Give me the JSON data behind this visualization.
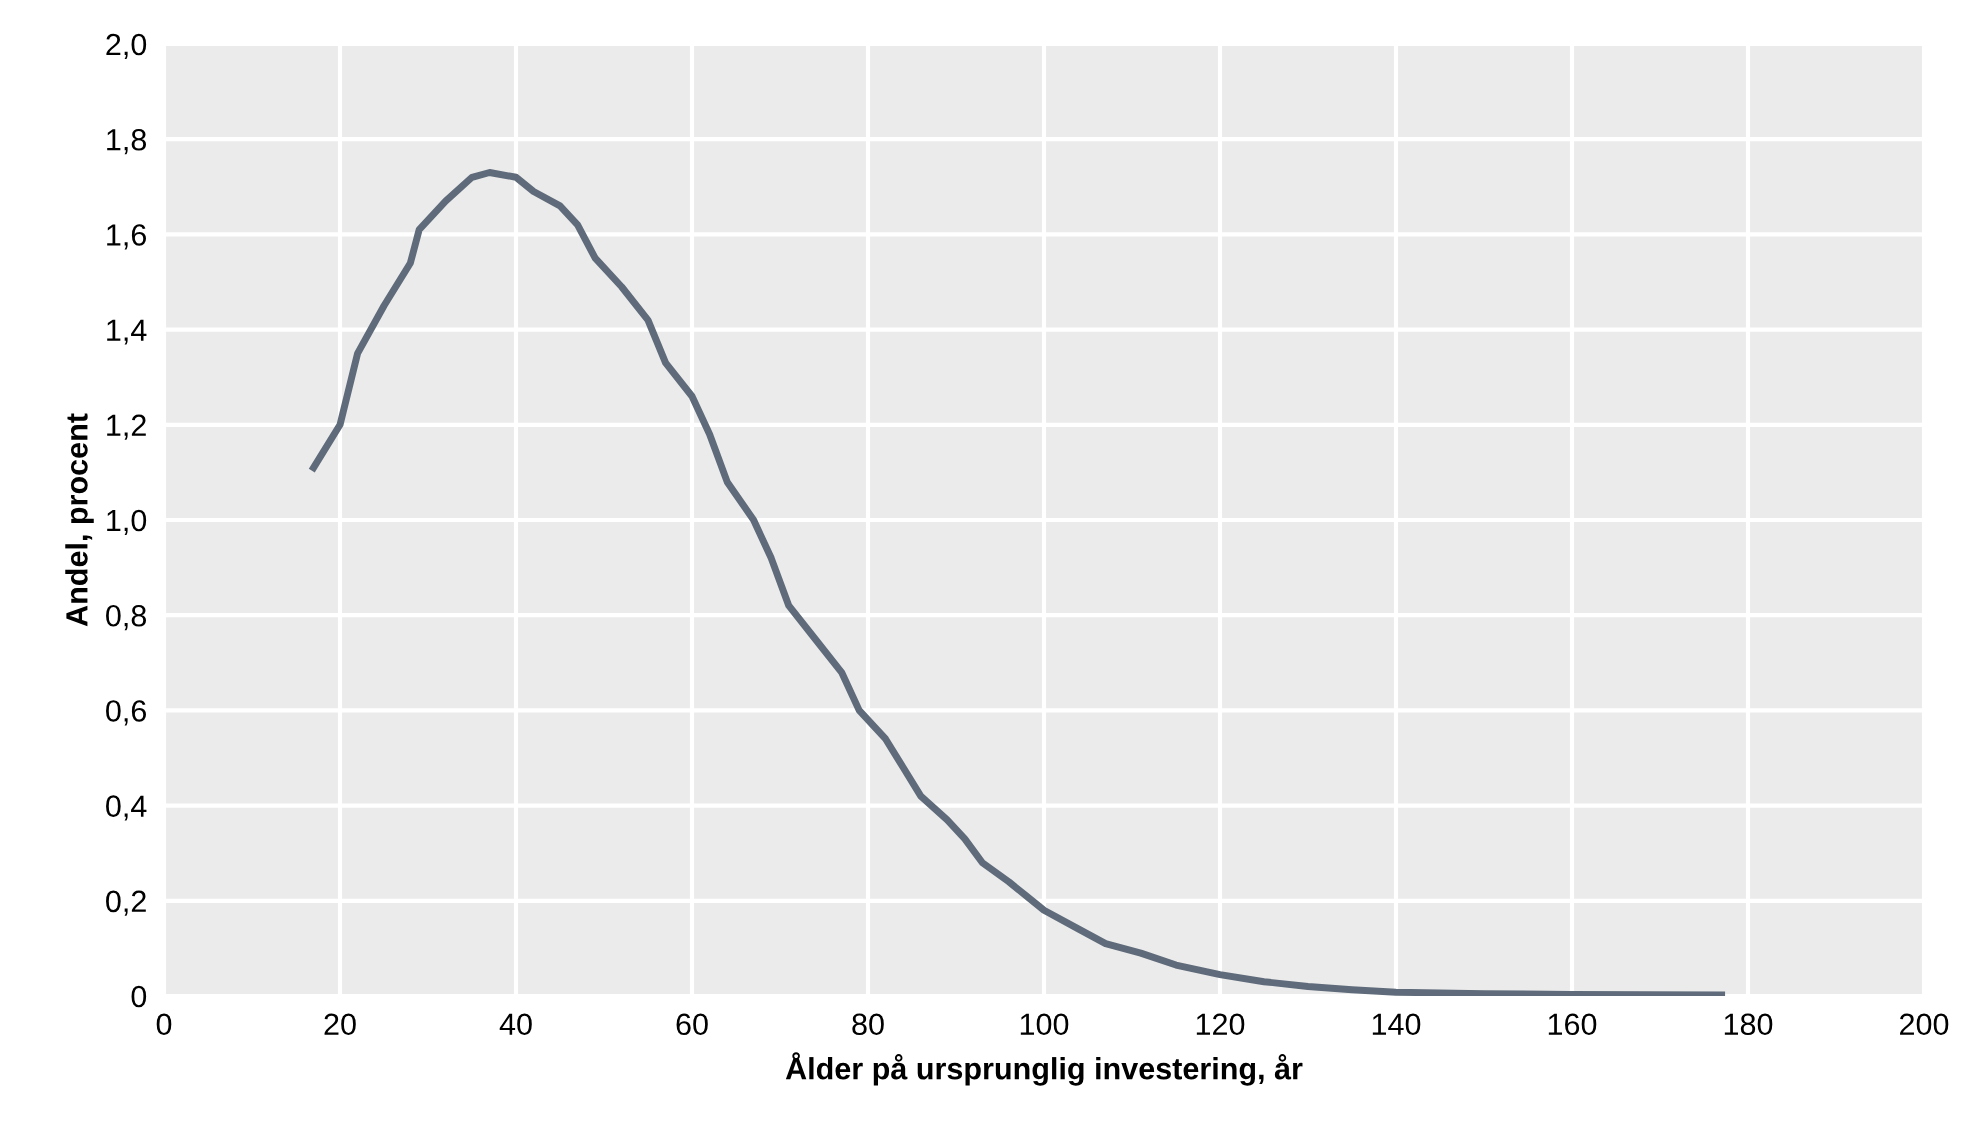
{
  "chart_data": {
    "type": "line",
    "xlabel": "Ålder på ursprunglig investering, år",
    "ylabel": "Andel, procent",
    "series": [
      {
        "color": "#5f6b7a",
        "x": [
          17,
          20,
          22,
          25,
          28,
          29,
          32,
          35,
          37,
          40,
          42,
          45,
          47,
          49,
          52,
          55,
          57,
          60,
          62,
          64,
          67,
          69,
          71,
          74,
          77,
          79,
          82,
          84,
          86,
          89,
          91,
          93,
          96,
          98,
          100,
          104,
          107,
          111,
          115,
          120,
          125,
          130,
          135,
          140,
          150,
          160,
          177
        ],
        "values": [
          1.11,
          1.2,
          1.35,
          1.45,
          1.54,
          1.61,
          1.67,
          1.72,
          1.73,
          1.72,
          1.69,
          1.66,
          1.62,
          1.55,
          1.49,
          1.42,
          1.33,
          1.26,
          1.18,
          1.08,
          1.0,
          0.92,
          0.82,
          0.75,
          0.68,
          0.6,
          0.54,
          0.48,
          0.42,
          0.37,
          0.33,
          0.28,
          0.24,
          0.21,
          0.18,
          0.14,
          0.11,
          0.09,
          0.065,
          0.045,
          0.03,
          0.02,
          0.013,
          0.008,
          0.005,
          0.003,
          0.002
        ]
      }
    ],
    "xlim": [
      0,
      200
    ],
    "xticks": [
      0,
      20,
      40,
      60,
      80,
      100,
      120,
      140,
      160,
      180,
      200
    ],
    "ylim": [
      0,
      2.0
    ],
    "yticks": [
      {
        "value": 0,
        "label": "0"
      },
      {
        "value": 0.2,
        "label": "0,2"
      },
      {
        "value": 0.4,
        "label": "0,4"
      },
      {
        "value": 0.6,
        "label": "0,6"
      },
      {
        "value": 0.8,
        "label": "0,8"
      },
      {
        "value": 1.0,
        "label": "1,0"
      },
      {
        "value": 1.2,
        "label": "1,2"
      },
      {
        "value": 1.4,
        "label": "1,4"
      },
      {
        "value": 1.6,
        "label": "1,6"
      },
      {
        "value": 1.8,
        "label": "1,8"
      },
      {
        "value": 2.0,
        "label": "2,0"
      }
    ],
    "grid": true,
    "marker": "none",
    "line_style": "solid",
    "legend": false
  }
}
